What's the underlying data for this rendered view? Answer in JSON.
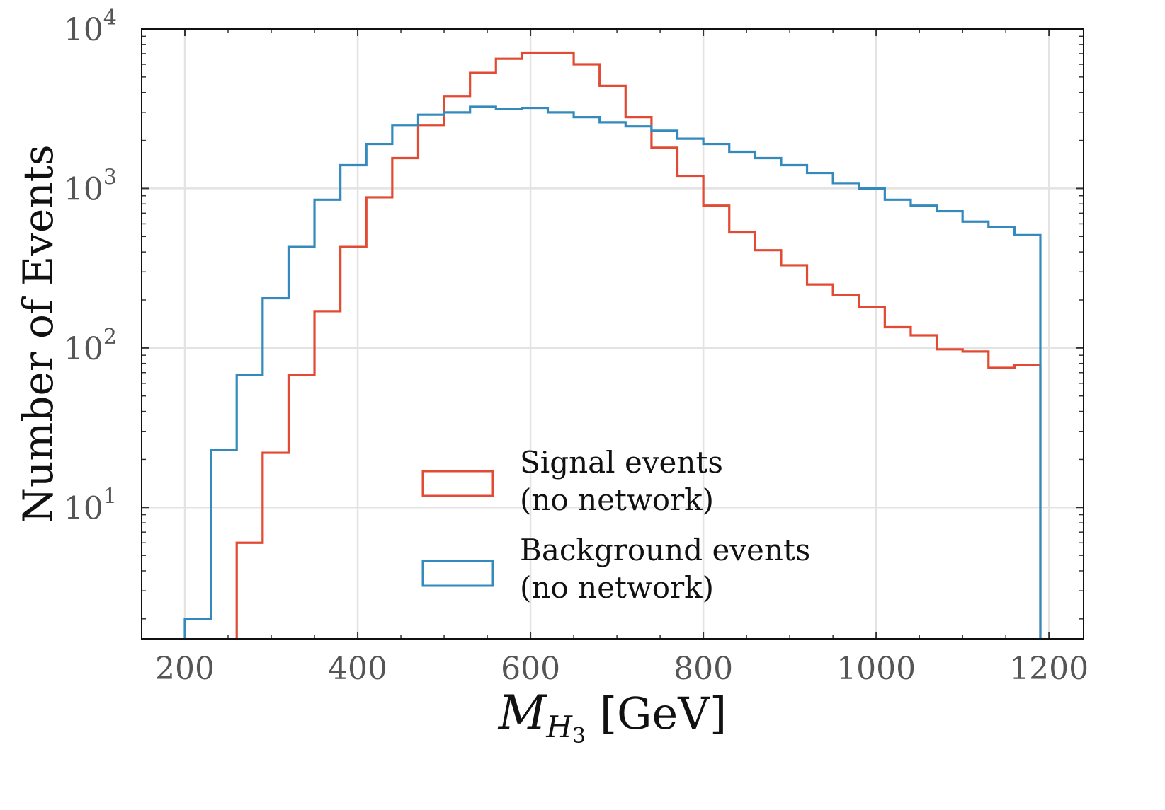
{
  "chart_data": {
    "type": "histogram",
    "xlabel_main": "M",
    "xlabel_sub": "H",
    "xlabel_subsub": "3",
    "xlabel_unit": " [GeV]",
    "ylabel": "Number of Events",
    "xlim": [
      150,
      1240
    ],
    "ylim": [
      1.5,
      10000
    ],
    "yscale": "log",
    "grid": true,
    "x_ticks": [
      200,
      400,
      600,
      800,
      1000,
      1200
    ],
    "x_tick_labels": [
      "200",
      "400",
      "600",
      "800",
      "1000",
      "1200"
    ],
    "y_ticks": [
      10,
      100,
      1000,
      10000
    ],
    "y_tick_labels": [
      {
        "base": "10",
        "exp": "1"
      },
      {
        "base": "10",
        "exp": "2"
      },
      {
        "base": "10",
        "exp": "3"
      },
      {
        "base": "10",
        "exp": "4"
      }
    ],
    "bin_edges": [
      200,
      230,
      260,
      290,
      320,
      350,
      380,
      410,
      440,
      470,
      500,
      530,
      560,
      590,
      620,
      650,
      680,
      710,
      740,
      770,
      800,
      830,
      860,
      890,
      920,
      950,
      980,
      1010,
      1040,
      1070,
      1100,
      1130,
      1160,
      1190
    ],
    "series": [
      {
        "name": "Signal events (no network)",
        "legend_line1": "Signal events",
        "legend_line2": "(no network)",
        "color": "#e24a33",
        "values": [
          0,
          0,
          6,
          22,
          68,
          170,
          430,
          880,
          1550,
          2500,
          3800,
          5300,
          6500,
          7100,
          7100,
          6000,
          4400,
          2800,
          1800,
          1200,
          780,
          530,
          410,
          330,
          250,
          215,
          180,
          135,
          120,
          98,
          95,
          75,
          78
        ]
      },
      {
        "name": "Background events (no network)",
        "legend_line1": "Background events",
        "legend_line2": "(no network)",
        "color": "#348abd",
        "values": [
          2,
          23,
          68,
          205,
          430,
          850,
          1400,
          1900,
          2500,
          2900,
          3000,
          3250,
          3150,
          3200,
          3000,
          2800,
          2600,
          2450,
          2300,
          2050,
          1900,
          1700,
          1550,
          1400,
          1250,
          1080,
          1000,
          850,
          780,
          720,
          620,
          570,
          510
        ]
      }
    ],
    "legend_position": "bottom-center"
  }
}
